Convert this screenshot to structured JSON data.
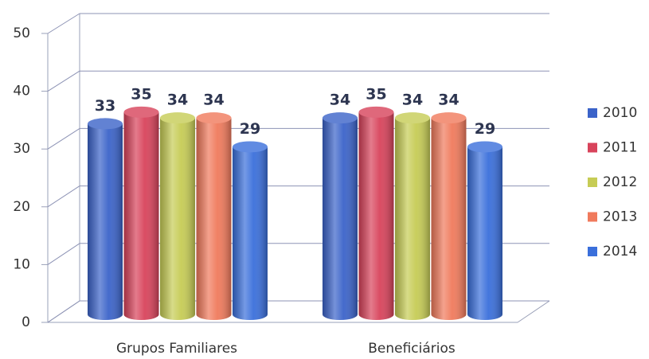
{
  "chart_data": {
    "type": "bar",
    "categories": [
      "Grupos Familiares",
      "Beneficiários"
    ],
    "series": [
      {
        "name": "2010",
        "color": "#3b63c9",
        "values": [
          33,
          34
        ]
      },
      {
        "name": "2011",
        "color": "#d8435b",
        "values": [
          35,
          35
        ]
      },
      {
        "name": "2012",
        "color": "#c6cc55",
        "values": [
          34,
          34
        ]
      },
      {
        "name": "2013",
        "color": "#f07a5c",
        "values": [
          34,
          34
        ]
      },
      {
        "name": "2014",
        "color": "#3a6fdb",
        "values": [
          29,
          29
        ]
      }
    ],
    "ylim": [
      0,
      50
    ],
    "yticks": [
      0,
      10,
      20,
      30,
      40,
      50
    ],
    "grid": true,
    "legend": "right"
  }
}
